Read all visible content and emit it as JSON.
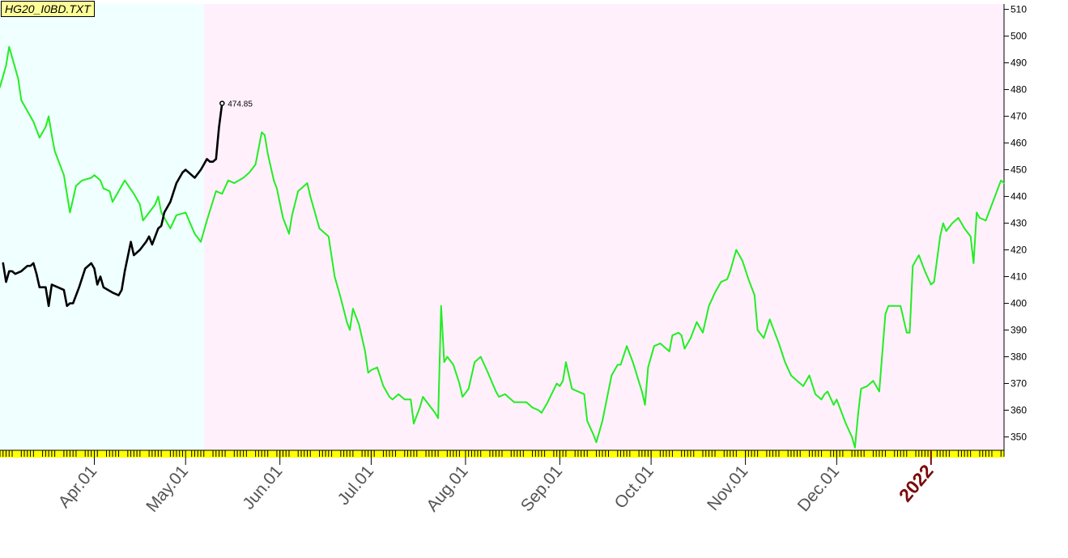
{
  "chart_data": {
    "type": "line",
    "title": "HG20_I0BD.TXT",
    "ylim": [
      345,
      512
    ],
    "yticks": [
      350,
      360,
      370,
      380,
      390,
      400,
      410,
      420,
      430,
      440,
      450,
      460,
      470,
      480,
      490,
      500,
      510
    ],
    "xlim": [
      "2021-03-01",
      "2022-01-25"
    ],
    "xticks": [
      {
        "date": "2021-04-01",
        "label": "Apr.01"
      },
      {
        "date": "2021-05-01",
        "label": "May.01"
      },
      {
        "date": "2021-06-01",
        "label": "Jun.01"
      },
      {
        "date": "2021-07-01",
        "label": "Jul.01"
      },
      {
        "date": "2021-08-01",
        "label": "Aug.01"
      },
      {
        "date": "2021-09-01",
        "label": "Sep.01"
      },
      {
        "date": "2021-10-01",
        "label": "Oct.01"
      },
      {
        "date": "2021-11-01",
        "label": "Nov.01"
      },
      {
        "date": "2021-12-01",
        "label": "Dec.01"
      },
      {
        "date": "2022-01-01",
        "label": "2022",
        "year": true
      }
    ],
    "regions": [
      {
        "from": "2021-03-01",
        "to": "2021-05-07",
        "color": "#f0ffff"
      },
      {
        "from": "2021-05-07",
        "to": "2022-01-25",
        "color": "#fff0fc"
      }
    ],
    "series": [
      {
        "color": "#22ee22",
        "points": [
          [
            "2021-03-01",
            481
          ],
          [
            "2021-03-03",
            489
          ],
          [
            "2021-03-04",
            496
          ],
          [
            "2021-03-07",
            484
          ],
          [
            "2021-03-08",
            476
          ],
          [
            "2021-03-10",
            472
          ],
          [
            "2021-03-12",
            468
          ],
          [
            "2021-03-14",
            462
          ],
          [
            "2021-03-16",
            466
          ],
          [
            "2021-03-17",
            470
          ],
          [
            "2021-03-18",
            463
          ],
          [
            "2021-03-19",
            457
          ],
          [
            "2021-03-22",
            448
          ],
          [
            "2021-03-24",
            434
          ],
          [
            "2021-03-25",
            439
          ],
          [
            "2021-03-26",
            444
          ],
          [
            "2021-03-28",
            446
          ],
          [
            "2021-03-31",
            447
          ],
          [
            "2021-04-01",
            448
          ],
          [
            "2021-04-03",
            446
          ],
          [
            "2021-04-04",
            443
          ],
          [
            "2021-04-06",
            442
          ],
          [
            "2021-04-07",
            438
          ],
          [
            "2021-04-08",
            440
          ],
          [
            "2021-04-11",
            446
          ],
          [
            "2021-04-14",
            441
          ],
          [
            "2021-04-16",
            437
          ],
          [
            "2021-04-17",
            431
          ],
          [
            "2021-04-19",
            434
          ],
          [
            "2021-04-21",
            437
          ],
          [
            "2021-04-22",
            440
          ],
          [
            "2021-04-23",
            434
          ],
          [
            "2021-04-25",
            430
          ],
          [
            "2021-04-26",
            428
          ],
          [
            "2021-04-28",
            433
          ],
          [
            "2021-05-01",
            434
          ],
          [
            "2021-05-04",
            426
          ],
          [
            "2021-05-06",
            423
          ],
          [
            "2021-05-08",
            431
          ],
          [
            "2021-05-11",
            442
          ],
          [
            "2021-05-13",
            441
          ],
          [
            "2021-05-15",
            446
          ],
          [
            "2021-05-17",
            445
          ],
          [
            "2021-05-20",
            447
          ],
          [
            "2021-05-22",
            449
          ],
          [
            "2021-05-24",
            452
          ],
          [
            "2021-05-26",
            464
          ],
          [
            "2021-05-27",
            463
          ],
          [
            "2021-05-28",
            456
          ],
          [
            "2021-05-30",
            446
          ],
          [
            "2021-05-31",
            443
          ],
          [
            "2021-06-02",
            432
          ],
          [
            "2021-06-04",
            426
          ],
          [
            "2021-06-05",
            433
          ],
          [
            "2021-06-07",
            442
          ],
          [
            "2021-06-08",
            443
          ],
          [
            "2021-06-10",
            445
          ],
          [
            "2021-06-11",
            440
          ],
          [
            "2021-06-14",
            428
          ],
          [
            "2021-06-16",
            426
          ],
          [
            "2021-06-17",
            425
          ],
          [
            "2021-06-19",
            410
          ],
          [
            "2021-06-21",
            402
          ],
          [
            "2021-06-23",
            393
          ],
          [
            "2021-06-24",
            390
          ],
          [
            "2021-06-25",
            398
          ],
          [
            "2021-06-27",
            392
          ],
          [
            "2021-06-29",
            382
          ],
          [
            "2021-06-30",
            374
          ],
          [
            "2021-07-01",
            375
          ],
          [
            "2021-07-03",
            376
          ],
          [
            "2021-07-05",
            369
          ],
          [
            "2021-07-06",
            367
          ],
          [
            "2021-07-07",
            365
          ],
          [
            "2021-07-08",
            364
          ],
          [
            "2021-07-10",
            366
          ],
          [
            "2021-07-12",
            364
          ],
          [
            "2021-07-14",
            364
          ],
          [
            "2021-07-15",
            355
          ],
          [
            "2021-07-17",
            361
          ],
          [
            "2021-07-18",
            365
          ],
          [
            "2021-07-20",
            362
          ],
          [
            "2021-07-22",
            359
          ],
          [
            "2021-07-23",
            357
          ],
          [
            "2021-07-24",
            399
          ],
          [
            "2021-07-25",
            378
          ],
          [
            "2021-07-26",
            380
          ],
          [
            "2021-07-28",
            377
          ],
          [
            "2021-07-30",
            370
          ],
          [
            "2021-07-31",
            365
          ],
          [
            "2021-08-02",
            368
          ],
          [
            "2021-08-04",
            378
          ],
          [
            "2021-08-06",
            380
          ],
          [
            "2021-08-08",
            375
          ],
          [
            "2021-08-11",
            367
          ],
          [
            "2021-08-12",
            365
          ],
          [
            "2021-08-14",
            366
          ],
          [
            "2021-08-17",
            363
          ],
          [
            "2021-08-19",
            363
          ],
          [
            "2021-08-21",
            363
          ],
          [
            "2021-08-23",
            361
          ],
          [
            "2021-08-25",
            360
          ],
          [
            "2021-08-26",
            359
          ],
          [
            "2021-08-28",
            363
          ],
          [
            "2021-08-31",
            370
          ],
          [
            "2021-09-01",
            369
          ],
          [
            "2021-09-02",
            371
          ],
          [
            "2021-09-03",
            378
          ],
          [
            "2021-09-05",
            368
          ],
          [
            "2021-09-07",
            367
          ],
          [
            "2021-09-09",
            366
          ],
          [
            "2021-09-10",
            356
          ],
          [
            "2021-09-12",
            351
          ],
          [
            "2021-09-13",
            348
          ],
          [
            "2021-09-15",
            356
          ],
          [
            "2021-09-18",
            373
          ],
          [
            "2021-09-20",
            377
          ],
          [
            "2021-09-21",
            377
          ],
          [
            "2021-09-23",
            384
          ],
          [
            "2021-09-25",
            378
          ],
          [
            "2021-09-28",
            367
          ],
          [
            "2021-09-29",
            362
          ],
          [
            "2021-09-30",
            376
          ],
          [
            "2021-10-02",
            384
          ],
          [
            "2021-10-04",
            385
          ],
          [
            "2021-10-06",
            383
          ],
          [
            "2021-10-07",
            382
          ],
          [
            "2021-10-08",
            388
          ],
          [
            "2021-10-10",
            389
          ],
          [
            "2021-10-11",
            388
          ],
          [
            "2021-10-12",
            383
          ],
          [
            "2021-10-14",
            387
          ],
          [
            "2021-10-16",
            393
          ],
          [
            "2021-10-18",
            389
          ],
          [
            "2021-10-20",
            399
          ],
          [
            "2021-10-22",
            404
          ],
          [
            "2021-10-24",
            408
          ],
          [
            "2021-10-26",
            409
          ],
          [
            "2021-10-27",
            412
          ],
          [
            "2021-10-29",
            420
          ],
          [
            "2021-10-31",
            416
          ],
          [
            "2021-11-02",
            409
          ],
          [
            "2021-11-04",
            403
          ],
          [
            "2021-11-05",
            390
          ],
          [
            "2021-11-07",
            387
          ],
          [
            "2021-11-09",
            394
          ],
          [
            "2021-11-10",
            391
          ],
          [
            "2021-11-12",
            385
          ],
          [
            "2021-11-14",
            378
          ],
          [
            "2021-11-16",
            373
          ],
          [
            "2021-11-18",
            371
          ],
          [
            "2021-11-20",
            369
          ],
          [
            "2021-11-22",
            373
          ],
          [
            "2021-11-24",
            366
          ],
          [
            "2021-11-26",
            364
          ],
          [
            "2021-11-27",
            366
          ],
          [
            "2021-11-28",
            367
          ],
          [
            "2021-11-30",
            362
          ],
          [
            "2021-12-01",
            364
          ],
          [
            "2021-12-04",
            355
          ],
          [
            "2021-12-06",
            350
          ],
          [
            "2021-12-07",
            346
          ],
          [
            "2021-12-08",
            358
          ],
          [
            "2021-12-09",
            368
          ],
          [
            "2021-12-11",
            369
          ],
          [
            "2021-12-13",
            371
          ],
          [
            "2021-12-15",
            367
          ],
          [
            "2021-12-17",
            396
          ],
          [
            "2021-12-18",
            399
          ],
          [
            "2021-12-19",
            399
          ],
          [
            "2021-12-22",
            399
          ],
          [
            "2021-12-24",
            389
          ],
          [
            "2021-12-25",
            389
          ],
          [
            "2021-12-26",
            414
          ],
          [
            "2021-12-28",
            418
          ],
          [
            "2021-12-30",
            412
          ],
          [
            "2022-01-01",
            407
          ],
          [
            "2022-01-02",
            408
          ],
          [
            "2022-01-04",
            425
          ],
          [
            "2022-01-05",
            430
          ],
          [
            "2022-01-06",
            427
          ],
          [
            "2022-01-08",
            430
          ],
          [
            "2022-01-10",
            432
          ],
          [
            "2022-01-12",
            428
          ],
          [
            "2022-01-14",
            425
          ],
          [
            "2022-01-15",
            415
          ],
          [
            "2022-01-16",
            434
          ],
          [
            "2022-01-17",
            432
          ],
          [
            "2022-01-19",
            431
          ],
          [
            "2022-01-21",
            437
          ],
          [
            "2022-01-24",
            446
          ],
          [
            "2022-01-25",
            445
          ]
        ]
      },
      {
        "color": "#000000",
        "points": [
          [
            "2021-03-02",
            415
          ],
          [
            "2021-03-03",
            408
          ],
          [
            "2021-03-04",
            412
          ],
          [
            "2021-03-05",
            412
          ],
          [
            "2021-03-06",
            411
          ],
          [
            "2021-03-08",
            412
          ],
          [
            "2021-03-10",
            414
          ],
          [
            "2021-03-11",
            414
          ],
          [
            "2021-03-12",
            415
          ],
          [
            "2021-03-13",
            411
          ],
          [
            "2021-03-14",
            406
          ],
          [
            "2021-03-16",
            406
          ],
          [
            "2021-03-17",
            399
          ],
          [
            "2021-03-18",
            407
          ],
          [
            "2021-03-20",
            406
          ],
          [
            "2021-03-22",
            405
          ],
          [
            "2021-03-23",
            399
          ],
          [
            "2021-03-24",
            400
          ],
          [
            "2021-03-25",
            400
          ],
          [
            "2021-03-27",
            406
          ],
          [
            "2021-03-29",
            413
          ],
          [
            "2021-03-31",
            415
          ],
          [
            "2021-04-01",
            413
          ],
          [
            "2021-04-02",
            407
          ],
          [
            "2021-04-03",
            410
          ],
          [
            "2021-04-04",
            406
          ],
          [
            "2021-04-07",
            404
          ],
          [
            "2021-04-09",
            403
          ],
          [
            "2021-04-10",
            405
          ],
          [
            "2021-04-11",
            412
          ],
          [
            "2021-04-13",
            423
          ],
          [
            "2021-04-14",
            418
          ],
          [
            "2021-04-16",
            420
          ],
          [
            "2021-04-18",
            423
          ],
          [
            "2021-04-19",
            425
          ],
          [
            "2021-04-20",
            422
          ],
          [
            "2021-04-22",
            428
          ],
          [
            "2021-04-23",
            429
          ],
          [
            "2021-04-24",
            434
          ],
          [
            "2021-04-26",
            438
          ],
          [
            "2021-04-28",
            445
          ],
          [
            "2021-04-30",
            449
          ],
          [
            "2021-05-01",
            450
          ],
          [
            "2021-05-03",
            448
          ],
          [
            "2021-05-04",
            447
          ],
          [
            "2021-05-06",
            450
          ],
          [
            "2021-05-07",
            452
          ],
          [
            "2021-05-08",
            454
          ],
          [
            "2021-05-09",
            453
          ],
          [
            "2021-05-10",
            453
          ],
          [
            "2021-05-11",
            454
          ],
          [
            "2021-05-12",
            466
          ],
          [
            "2021-05-13",
            474.85
          ]
        ],
        "last_value_label": "474.85"
      }
    ]
  }
}
